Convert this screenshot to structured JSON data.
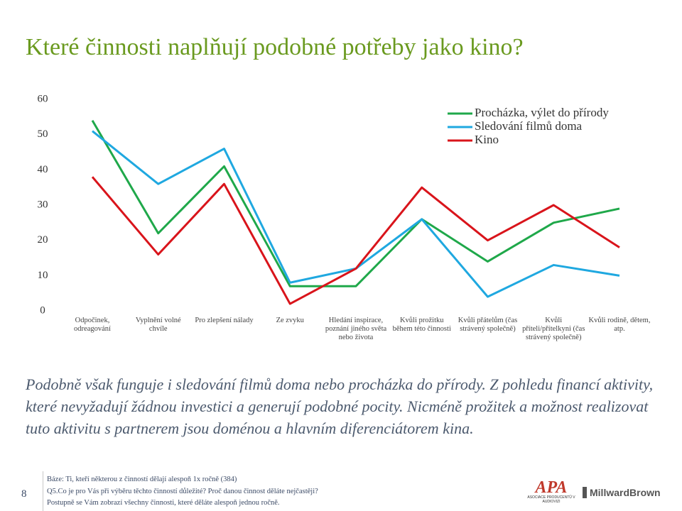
{
  "chart_data": {
    "type": "line",
    "title": "Které činnosti naplňují podobné potřeby jako kino?",
    "categories": [
      "Odpočinek, odreagování",
      "Vyplnění volné chvíle",
      "Pro zlepšení nálady",
      "Ze zvyku",
      "Hledání inspirace, poznání jiného světa nebo života",
      "Kvůli prožitku během této činnosti",
      "Kvůli přátelům (čas strávený společně)",
      "Kvůli příteli/přítelkyni (čas strávený společně)",
      "Kvůli rodině, dětem, atp."
    ],
    "series": [
      {
        "name": "Procházka, výlet do přírody",
        "color": "#1fa84a",
        "values": [
          54,
          22,
          41,
          7,
          7,
          26,
          14,
          25,
          29
        ]
      },
      {
        "name": "Sledování filmů doma",
        "color": "#1fa8e0",
        "values": [
          51,
          36,
          46,
          8,
          12,
          26,
          4,
          13,
          10
        ]
      },
      {
        "name": "Kino",
        "color": "#d9141b",
        "values": [
          38,
          16,
          36,
          2,
          12,
          35,
          20,
          30,
          18
        ]
      }
    ],
    "ylim": [
      0,
      60
    ],
    "yticks": [
      0,
      10,
      20,
      30,
      40,
      50,
      60
    ],
    "grid": false,
    "legend": "upper-right"
  },
  "body": "Podobně však funguje i sledování filmů doma nebo procházka do přírody. Z pohledu financí aktivity, které nevyžadují žádnou investici a generují podobné pocity. Nicméně prožitek a možnost realizovat tuto aktivitu s partnerem jsou doménou a hlavním diferenciátorem kina.",
  "footer": {
    "page": "8",
    "notes": [
      "Báze: Ti, kteří některou z činností dělají alespoň 1x ročně (384)",
      "Q5.Co je pro Vás při výběru těchto činností důležité? Proč danou činnost děláte nejčastěji?",
      "Postupně se Vám zobrazí všechny činnosti, které děláte alespoň jednou ročně."
    ],
    "logos": [
      "APA",
      "ASOCIACE PRODUCENTŮ V AUDIOVIZI",
      "MillwardBrown"
    ]
  }
}
